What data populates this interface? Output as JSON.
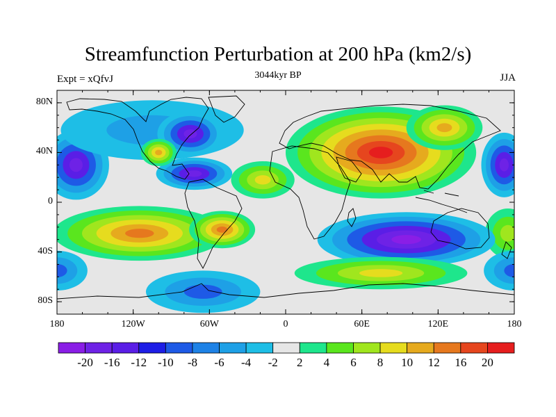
{
  "header": {
    "title": "Streamfunction Perturbation at 200 hPa (km2/s)",
    "left": "Expt = xQfvJ",
    "center": "3044kyr BP",
    "right": "JJA"
  },
  "axes": {
    "lat_ticks": [
      {
        "label": "80N",
        "lat": 80
      },
      {
        "label": "40N",
        "lat": 40
      },
      {
        "label": "0",
        "lat": 0
      },
      {
        "label": "40S",
        "lat": -40
      },
      {
        "label": "80S",
        "lat": -80
      }
    ],
    "lon_ticks": [
      {
        "label": "180",
        "lon": -180
      },
      {
        "label": "120W",
        "lon": -120
      },
      {
        "label": "60W",
        "lon": -60
      },
      {
        "label": "0",
        "lon": 0
      },
      {
        "label": "60E",
        "lon": 60
      },
      {
        "label": "120E",
        "lon": 120
      },
      {
        "label": "180",
        "lon": 180
      }
    ],
    "lon_range": [
      -180,
      180
    ],
    "lat_range": [
      -90,
      90
    ]
  },
  "colorbar": {
    "colors": [
      "#8a1ee6",
      "#6e22e6",
      "#5a1ee6",
      "#1e1ee6",
      "#1e5ae6",
      "#1e82e6",
      "#1ea0e6",
      "#1ebee6",
      "#e6e6e6",
      "#1ee68c",
      "#5ae61e",
      "#a0e61e",
      "#e6dc1e",
      "#e6aa1e",
      "#e6781e",
      "#e6461e",
      "#e61e1e"
    ],
    "labels": [
      "-20",
      "-16",
      "-12",
      "-10",
      "-8",
      "-6",
      "-4",
      "-2",
      "2",
      "4",
      "6",
      "8",
      "10",
      "12",
      "16",
      "20"
    ]
  },
  "map_data": {
    "blobs": [
      {
        "lon": -165,
        "lat": 30,
        "rx": 26,
        "ry": 28,
        "levels": [
          -2,
          -4,
          -8,
          -12,
          -16
        ]
      },
      {
        "lon": 172,
        "lat": 30,
        "rx": 18,
        "ry": 26,
        "levels": [
          -2,
          -4,
          -8,
          -12,
          -16
        ]
      },
      {
        "lon": -105,
        "lat": 58,
        "rx": 72,
        "ry": 24,
        "levels": [
          -2,
          -4
        ]
      },
      {
        "lon": -75,
        "lat": 55,
        "rx": 26,
        "ry": 18,
        "levels": [
          -2,
          -4,
          -8,
          -12,
          -16
        ]
      },
      {
        "lon": -72,
        "lat": 23,
        "rx": 30,
        "ry": 13,
        "levels": [
          -2,
          -4,
          -8,
          -12,
          -16
        ]
      },
      {
        "lon": -100,
        "lat": 40,
        "rx": 14,
        "ry": 11,
        "levels": [
          2,
          4,
          6,
          8,
          10
        ]
      },
      {
        "lon": -18,
        "lat": 18,
        "rx": 25,
        "ry": 15,
        "levels": [
          2,
          4,
          6,
          8
        ]
      },
      {
        "lon": 75,
        "lat": 40,
        "rx": 75,
        "ry": 37,
        "levels": [
          2,
          4,
          6,
          8,
          10,
          12,
          16,
          20
        ]
      },
      {
        "lon": 125,
        "lat": 60,
        "rx": 30,
        "ry": 18,
        "levels": [
          2,
          4,
          6,
          8,
          10
        ]
      },
      {
        "lon": -115,
        "lat": -25,
        "rx": 68,
        "ry": 22,
        "levels": [
          2,
          4,
          6,
          8,
          10,
          12
        ]
      },
      {
        "lon": -50,
        "lat": -22,
        "rx": 26,
        "ry": 15,
        "levels": [
          2,
          4,
          6,
          8,
          10,
          12
        ]
      },
      {
        "lon": 175,
        "lat": -25,
        "rx": 18,
        "ry": 20,
        "levels": [
          2,
          4,
          6
        ]
      },
      {
        "lon": 95,
        "lat": -30,
        "rx": 70,
        "ry": 22,
        "levels": [
          -2,
          -4,
          -8,
          -12,
          -16,
          -20
        ]
      },
      {
        "lon": -65,
        "lat": -72,
        "rx": 45,
        "ry": 17,
        "levels": [
          -2,
          -4,
          -8
        ]
      },
      {
        "lon": -180,
        "lat": -55,
        "rx": 24,
        "ry": 16,
        "levels": [
          -2,
          -4,
          -8
        ]
      },
      {
        "lon": 180,
        "lat": -55,
        "rx": 24,
        "ry": 16,
        "levels": [
          -2,
          -4,
          -8
        ]
      },
      {
        "lon": 75,
        "lat": -57,
        "rx": 68,
        "ry": 13,
        "levels": [
          2,
          4,
          6,
          8
        ]
      }
    ]
  }
}
